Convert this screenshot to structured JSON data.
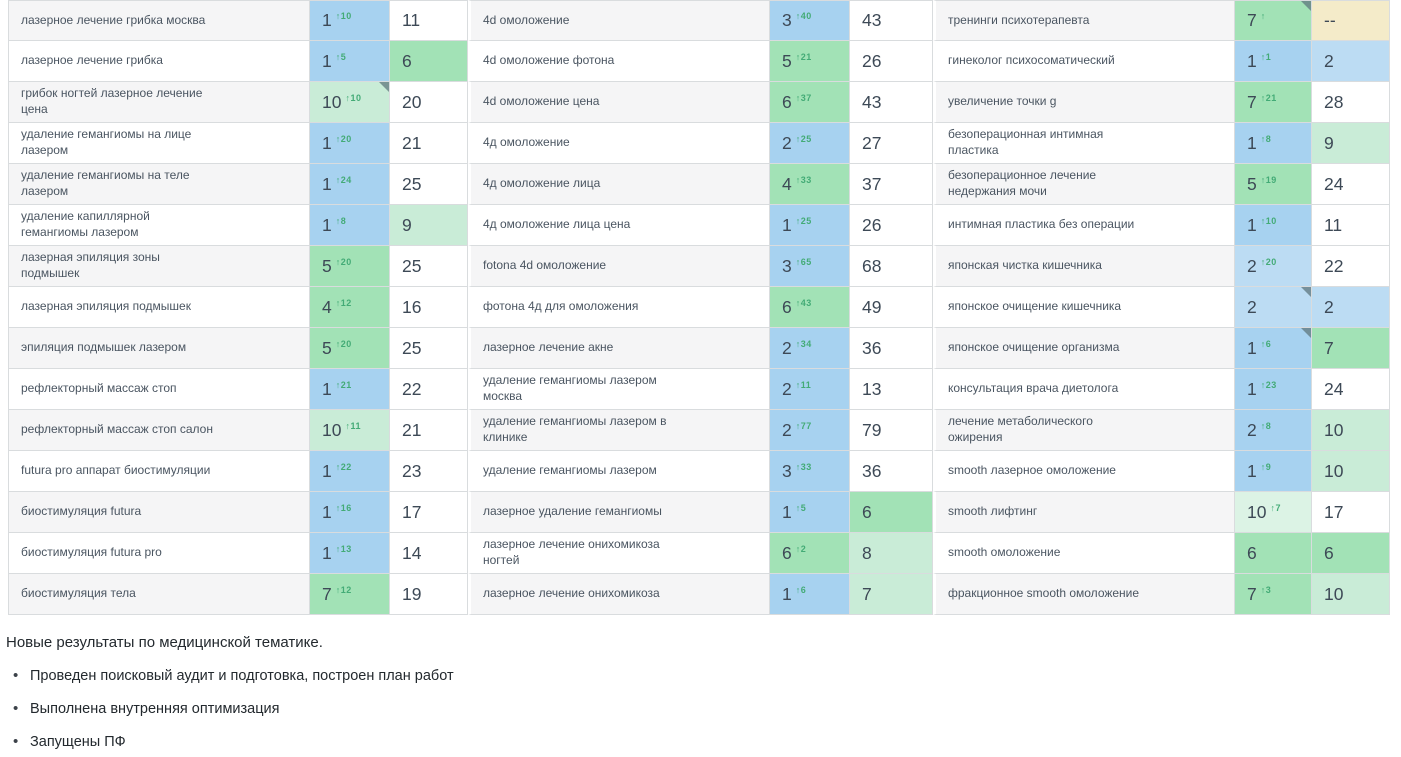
{
  "palette": {
    "blue": "#a7d2f0",
    "lightblue": "#bcdcf3",
    "green": "#a2e2b6",
    "lightgreen": "#c9ecd7",
    "palegreen": "#dcf3e5",
    "beige": "#f4ebc9",
    "white": "#ffffff",
    "change_up": "#43ab76",
    "corner_fold": "#5f777d",
    "row_stripe": "#f5f5f6",
    "border": "#d9dcde",
    "number_text": "#3d4956",
    "keyword_text": "#4a5561"
  },
  "table": {
    "rows": [
      [
        {
          "kw": "лазерное лечение грибка москва",
          "pos": "1",
          "chg": "↑10",
          "posBg": "blue",
          "val": "11",
          "valBg": "white"
        },
        {
          "kw": "4d омоложение",
          "pos": "3",
          "chg": "↑40",
          "posBg": "blue",
          "val": "43",
          "valBg": "white"
        },
        {
          "kw": "тренинги психотерапевта",
          "pos": "7",
          "chg": "↑",
          "posBg": "green",
          "corner": true,
          "val": "--",
          "valBg": "beige"
        }
      ],
      [
        {
          "kw": "лазерное лечение грибка",
          "pos": "1",
          "chg": "↑5",
          "posBg": "blue",
          "val": "6",
          "valBg": "green"
        },
        {
          "kw": "4d омоложение фотона",
          "pos": "5",
          "chg": "↑21",
          "posBg": "green",
          "val": "26",
          "valBg": "white"
        },
        {
          "kw": "гинеколог психосоматический",
          "pos": "1",
          "chg": "↑1",
          "posBg": "blue",
          "val": "2",
          "valBg": "lightblue"
        }
      ],
      [
        {
          "kw": "грибок ногтей лазерное лечение цена",
          "pos": "10",
          "chg": "↑10",
          "posBg": "lightgreen",
          "corner": true,
          "val": "20",
          "valBg": "white"
        },
        {
          "kw": "4d омоложение цена",
          "pos": "6",
          "chg": "↑37",
          "posBg": "green",
          "val": "43",
          "valBg": "white"
        },
        {
          "kw": "увеличение точки g",
          "pos": "7",
          "chg": "↑21",
          "posBg": "green",
          "val": "28",
          "valBg": "white"
        }
      ],
      [
        {
          "kw": "удаление гемангиомы на лице лазером",
          "pos": "1",
          "chg": "↑20",
          "posBg": "blue",
          "val": "21",
          "valBg": "white"
        },
        {
          "kw": "4д омоложение",
          "pos": "2",
          "chg": "↑25",
          "posBg": "blue",
          "val": "27",
          "valBg": "white"
        },
        {
          "kw": "безоперационная интимная пластика",
          "pos": "1",
          "chg": "↑8",
          "posBg": "blue",
          "val": "9",
          "valBg": "lightgreen"
        }
      ],
      [
        {
          "kw": "удаление гемангиомы на теле лазером",
          "pos": "1",
          "chg": "↑24",
          "posBg": "blue",
          "val": "25",
          "valBg": "white"
        },
        {
          "kw": "4д омоложение лица",
          "pos": "4",
          "chg": "↑33",
          "posBg": "green",
          "val": "37",
          "valBg": "white"
        },
        {
          "kw": "безоперационное лечение недержания мочи",
          "pos": "5",
          "chg": "↑19",
          "posBg": "green",
          "val": "24",
          "valBg": "white"
        }
      ],
      [
        {
          "kw": "удаление капиллярной гемангиомы лазером",
          "pos": "1",
          "chg": "↑8",
          "posBg": "blue",
          "val": "9",
          "valBg": "lightgreen"
        },
        {
          "kw": "4д омоложение лица цена",
          "pos": "1",
          "chg": "↑25",
          "posBg": "blue",
          "val": "26",
          "valBg": "white"
        },
        {
          "kw": "интимная пластика без операции",
          "pos": "1",
          "chg": "↑10",
          "posBg": "blue",
          "val": "11",
          "valBg": "white"
        }
      ],
      [
        {
          "kw": "лазерная эпиляция зоны подмышек",
          "pos": "5",
          "chg": "↑20",
          "posBg": "green",
          "val": "25",
          "valBg": "white"
        },
        {
          "kw": "fotona 4d омоложение",
          "pos": "3",
          "chg": "↑65",
          "posBg": "blue",
          "val": "68",
          "valBg": "white"
        },
        {
          "kw": "японская чистка кишечника",
          "pos": "2",
          "chg": "↑20",
          "posBg": "lightblue",
          "val": "22",
          "valBg": "white"
        }
      ],
      [
        {
          "kw": "лазерная эпиляция подмышек",
          "pos": "4",
          "chg": "↑12",
          "posBg": "green",
          "val": "16",
          "valBg": "white"
        },
        {
          "kw": "фотона 4д для омоложения",
          "pos": "6",
          "chg": "↑43",
          "posBg": "green",
          "val": "49",
          "valBg": "white"
        },
        {
          "kw": "японское очищение кишечника",
          "pos": "2",
          "chg": "",
          "posBg": "lightblue",
          "corner": true,
          "val": "2",
          "valBg": "lightblue"
        }
      ],
      [
        {
          "kw": "эпиляция подмышек лазером",
          "pos": "5",
          "chg": "↑20",
          "posBg": "green",
          "val": "25",
          "valBg": "white"
        },
        {
          "kw": "лазерное лечение акне",
          "pos": "2",
          "chg": "↑34",
          "posBg": "blue",
          "val": "36",
          "valBg": "white"
        },
        {
          "kw": "японское очищение организма",
          "pos": "1",
          "chg": "↑6",
          "posBg": "blue",
          "corner": true,
          "val": "7",
          "valBg": "green"
        }
      ],
      [
        {
          "kw": "рефлекторный массаж стоп",
          "pos": "1",
          "chg": "↑21",
          "posBg": "blue",
          "val": "22",
          "valBg": "white"
        },
        {
          "kw": "удаление гемангиомы лазером москва",
          "pos": "2",
          "chg": "↑11",
          "posBg": "blue",
          "val": "13",
          "valBg": "white"
        },
        {
          "kw": "консультация врача диетолога",
          "pos": "1",
          "chg": "↑23",
          "posBg": "blue",
          "val": "24",
          "valBg": "white"
        }
      ],
      [
        {
          "kw": "рефлекторный массаж стоп салон",
          "pos": "10",
          "chg": "↑11",
          "posBg": "lightgreen",
          "val": "21",
          "valBg": "white"
        },
        {
          "kw": "удаление гемангиомы лазером в клинике",
          "pos": "2",
          "chg": "↑77",
          "posBg": "blue",
          "val": "79",
          "valBg": "white"
        },
        {
          "kw": "лечение метаболического ожирения",
          "pos": "2",
          "chg": "↑8",
          "posBg": "blue",
          "val": "10",
          "valBg": "lightgreen"
        }
      ],
      [
        {
          "kw": "futura pro аппарат биостимуляции",
          "pos": "1",
          "chg": "↑22",
          "posBg": "blue",
          "val": "23",
          "valBg": "white"
        },
        {
          "kw": "удаление гемангиомы лазером",
          "pos": "3",
          "chg": "↑33",
          "posBg": "blue",
          "val": "36",
          "valBg": "white"
        },
        {
          "kw": "smooth лазерное омоложение",
          "pos": "1",
          "chg": "↑9",
          "posBg": "blue",
          "val": "10",
          "valBg": "lightgreen"
        }
      ],
      [
        {
          "kw": "биостимуляция futura",
          "pos": "1",
          "chg": "↑16",
          "posBg": "blue",
          "val": "17",
          "valBg": "white"
        },
        {
          "kw": "лазерное удаление гемангиомы",
          "pos": "1",
          "chg": "↑5",
          "posBg": "blue",
          "val": "6",
          "valBg": "green"
        },
        {
          "kw": "smooth лифтинг",
          "pos": "10",
          "chg": "↑7",
          "posBg": "palegreen",
          "val": "17",
          "valBg": "white"
        }
      ],
      [
        {
          "kw": "биостимуляция futura pro",
          "pos": "1",
          "chg": "↑13",
          "posBg": "blue",
          "val": "14",
          "valBg": "white"
        },
        {
          "kw": "лазерное лечение онихомикоза ногтей",
          "pos": "6",
          "chg": "↑2",
          "posBg": "green",
          "val": "8",
          "valBg": "lightgreen"
        },
        {
          "kw": "smooth омоложение",
          "pos": "6",
          "chg": "",
          "posBg": "green",
          "val": "6",
          "valBg": "green"
        }
      ],
      [
        {
          "kw": "биостимуляция тела",
          "pos": "7",
          "chg": "↑12",
          "posBg": "green",
          "val": "19",
          "valBg": "white"
        },
        {
          "kw": "лазерное лечение онихомикоза",
          "pos": "1",
          "chg": "↑6",
          "posBg": "blue",
          "val": "7",
          "valBg": "lightgreen"
        },
        {
          "kw": "фракционное smooth омоложение",
          "pos": "7",
          "chg": "↑3",
          "posBg": "green",
          "val": "10",
          "valBg": "lightgreen"
        }
      ]
    ]
  },
  "footer": {
    "heading": "Новые результаты по медицинской тематике.",
    "bullets": [
      "Проведен поисковый аудит и подготовка, построен план работ",
      "Выполнена внутренняя оптимизация",
      "Запущены ПФ"
    ]
  }
}
